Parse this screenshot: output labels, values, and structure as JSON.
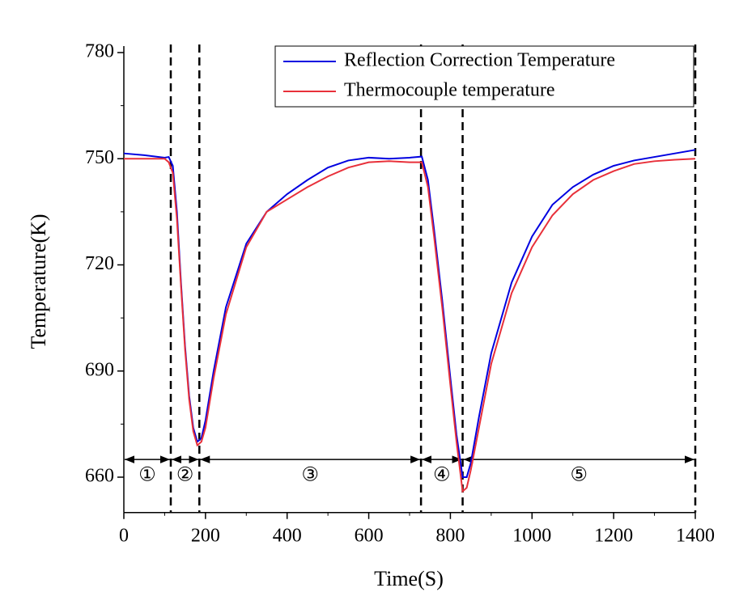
{
  "chart_data": {
    "type": "line",
    "x_label": "Time(S)",
    "y_label": "Temperature(K)",
    "xlim": [
      0,
      1400
    ],
    "xticks": [
      0,
      200,
      400,
      600,
      800,
      1000,
      1200,
      1400
    ],
    "ylim": [
      650,
      780
    ],
    "yticks": [
      660,
      690,
      720,
      750,
      780
    ],
    "legend": "upper right",
    "x": [
      0,
      50,
      100,
      110,
      120,
      130,
      140,
      150,
      160,
      170,
      180,
      190,
      200,
      220,
      250,
      300,
      350,
      400,
      450,
      500,
      550,
      600,
      650,
      700,
      730,
      745,
      760,
      780,
      800,
      815,
      830,
      840,
      850,
      870,
      900,
      950,
      1000,
      1050,
      1100,
      1150,
      1200,
      1250,
      1300,
      1350,
      1400
    ],
    "series": [
      {
        "name": "Reflection Correction Temperature",
        "color": "#0000e0",
        "values": [
          751.5,
          751,
          750.3,
          750.5,
          748,
          735,
          715,
          697,
          683,
          674,
          670,
          671,
          676,
          690,
          708,
          726,
          735,
          740,
          744,
          747.5,
          749.5,
          750.3,
          750,
          750.3,
          750.6,
          744,
          730,
          710,
          688,
          672,
          660,
          660,
          664,
          677,
          695,
          715,
          728,
          737,
          742,
          745.5,
          748,
          749.5,
          750.5,
          751.5,
          752.5
        ]
      },
      {
        "name": "Thermocouple temperature",
        "color": "#e8303a",
        "values": [
          750,
          750,
          750,
          749,
          746,
          733,
          714,
          696,
          682,
          673,
          669,
          670,
          674,
          688,
          706,
          725,
          735,
          738.5,
          742,
          745,
          747.5,
          749,
          749.3,
          749,
          749,
          742,
          728,
          708,
          686,
          670,
          656,
          657,
          662,
          674,
          692,
          712,
          725,
          734,
          740,
          744,
          746.5,
          748.5,
          749.3,
          749.7,
          750
        ]
      }
    ],
    "phase_arrow_y": 665,
    "phases": [
      {
        "label": "①",
        "start": 0,
        "end": 115
      },
      {
        "label": "②",
        "start": 115,
        "end": 185
      },
      {
        "label": "③",
        "start": 185,
        "end": 728
      },
      {
        "label": "④",
        "start": 728,
        "end": 830
      },
      {
        "label": "⑤",
        "start": 830,
        "end": 1400
      }
    ]
  }
}
